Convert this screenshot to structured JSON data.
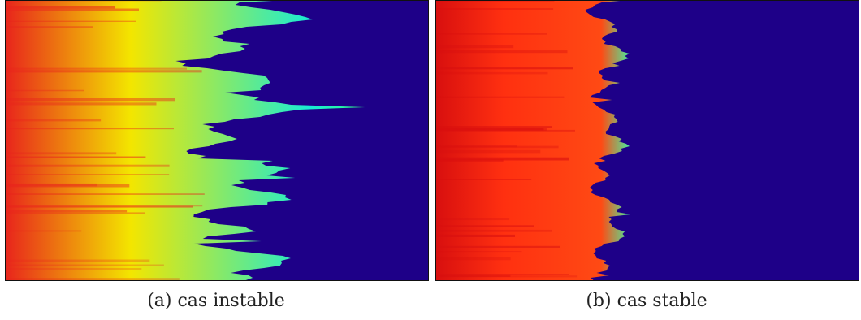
{
  "figure": {
    "panels": [
      {
        "id": "a",
        "caption": "(a) cas instable",
        "front_extent": 0.6,
        "colors": {
          "background": "#1e0088",
          "inlet": "#e8241c",
          "mid": "#f3e600",
          "front": "#18ecd4",
          "edge": "#32ff88"
        }
      },
      {
        "id": "b",
        "caption": "(b) cas stable",
        "front_extent": 0.42,
        "colors": {
          "background": "#1e0088",
          "inlet": "#d80f0f",
          "mid": "#ff3010",
          "front": "#ff4a14",
          "edge": "#44f0a0"
        }
      }
    ]
  }
}
